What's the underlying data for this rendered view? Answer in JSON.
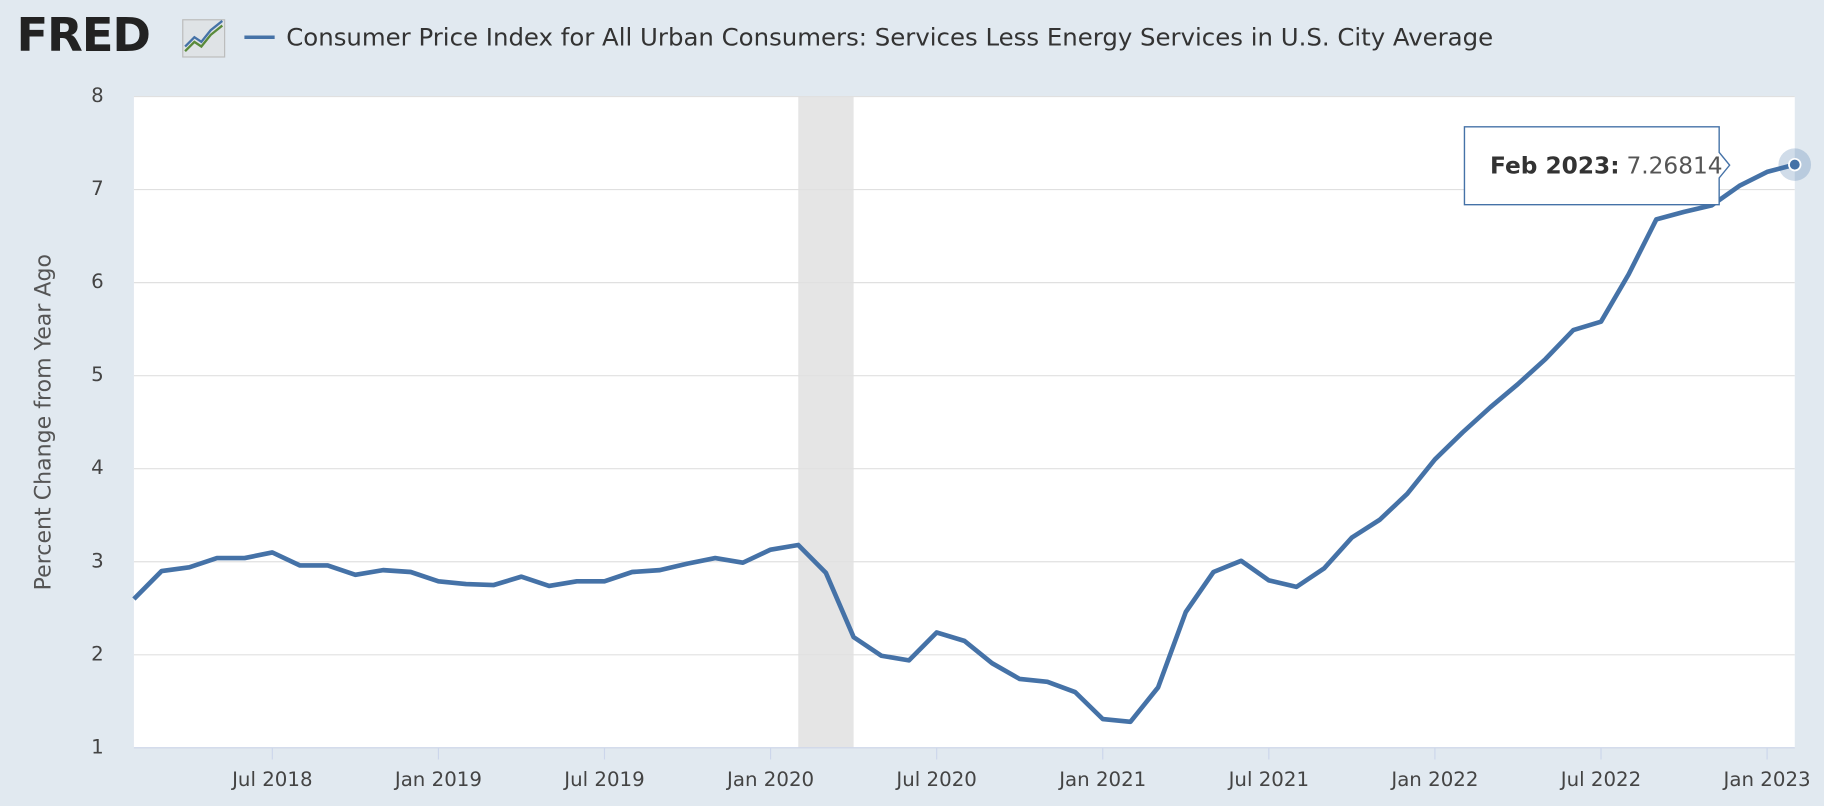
{
  "logo": "FRED",
  "chart_data": {
    "type": "line",
    "title": "Consumer Price Index for All Urban Consumers: Services Less Energy Services in U.S. City Average",
    "y_label": "Percent Change from Year Ago",
    "x": [
      "Feb 2018",
      "Mar 2018",
      "Apr 2018",
      "May 2018",
      "Jun 2018",
      "Jul 2018",
      "Aug 2018",
      "Sep 2018",
      "Oct 2018",
      "Nov 2018",
      "Dec 2018",
      "Jan 2019",
      "Feb 2019",
      "Mar 2019",
      "Apr 2019",
      "May 2019",
      "Jun 2019",
      "Jul 2019",
      "Aug 2019",
      "Sep 2019",
      "Oct 2019",
      "Nov 2019",
      "Dec 2019",
      "Jan 2020",
      "Feb 2020",
      "Mar 2020",
      "Apr 2020",
      "May 2020",
      "Jun 2020",
      "Jul 2020",
      "Aug 2020",
      "Sep 2020",
      "Oct 2020",
      "Nov 2020",
      "Dec 2020",
      "Jan 2021",
      "Feb 2021",
      "Mar 2021",
      "Apr 2021",
      "May 2021",
      "Jun 2021",
      "Jul 2021",
      "Aug 2021",
      "Sep 2021",
      "Oct 2021",
      "Nov 2021",
      "Dec 2021",
      "Jan 2022",
      "Feb 2022",
      "Mar 2022",
      "Apr 2022",
      "May 2022",
      "Jun 2022",
      "Jul 2022",
      "Aug 2022",
      "Sep 2022",
      "Oct 2022",
      "Nov 2022",
      "Dec 2022",
      "Jan 2023",
      "Feb 2023"
    ],
    "series": [
      {
        "name": "Consumer Price Index for All Urban Consumers: Services Less Energy Services in U.S. City Average",
        "color": "#4572a7",
        "values": [
          2.6,
          2.9,
          2.94,
          3.04,
          3.04,
          3.1,
          2.96,
          2.96,
          2.86,
          2.91,
          2.89,
          2.79,
          2.76,
          2.75,
          2.84,
          2.74,
          2.79,
          2.79,
          2.89,
          2.91,
          2.98,
          3.04,
          2.99,
          3.13,
          3.18,
          2.88,
          2.19,
          1.99,
          1.94,
          2.24,
          2.15,
          1.91,
          1.74,
          1.71,
          1.6,
          1.31,
          1.28,
          1.65,
          2.46,
          2.89,
          3.01,
          2.8,
          2.73,
          2.93,
          3.26,
          3.45,
          3.73,
          4.1,
          4.39,
          4.66,
          4.91,
          5.18,
          5.49,
          5.58,
          6.09,
          6.68,
          6.76,
          6.83,
          7.04,
          7.19,
          7.26814
        ]
      }
    ],
    "xticks": [
      "Jul 2018",
      "Jan 2019",
      "Jul 2019",
      "Jan 2020",
      "Jul 2020",
      "Jan 2021",
      "Jul 2021",
      "Jan 2022",
      "Jul 2022",
      "Jan 2023"
    ],
    "ylim": [
      1,
      8
    ],
    "yticks": [
      1,
      2,
      3,
      4,
      5,
      6,
      7,
      8
    ],
    "grid": true,
    "recession": [
      "Feb 2020",
      "Apr 2020"
    ],
    "tooltip_label": "Feb 2023:"
  }
}
